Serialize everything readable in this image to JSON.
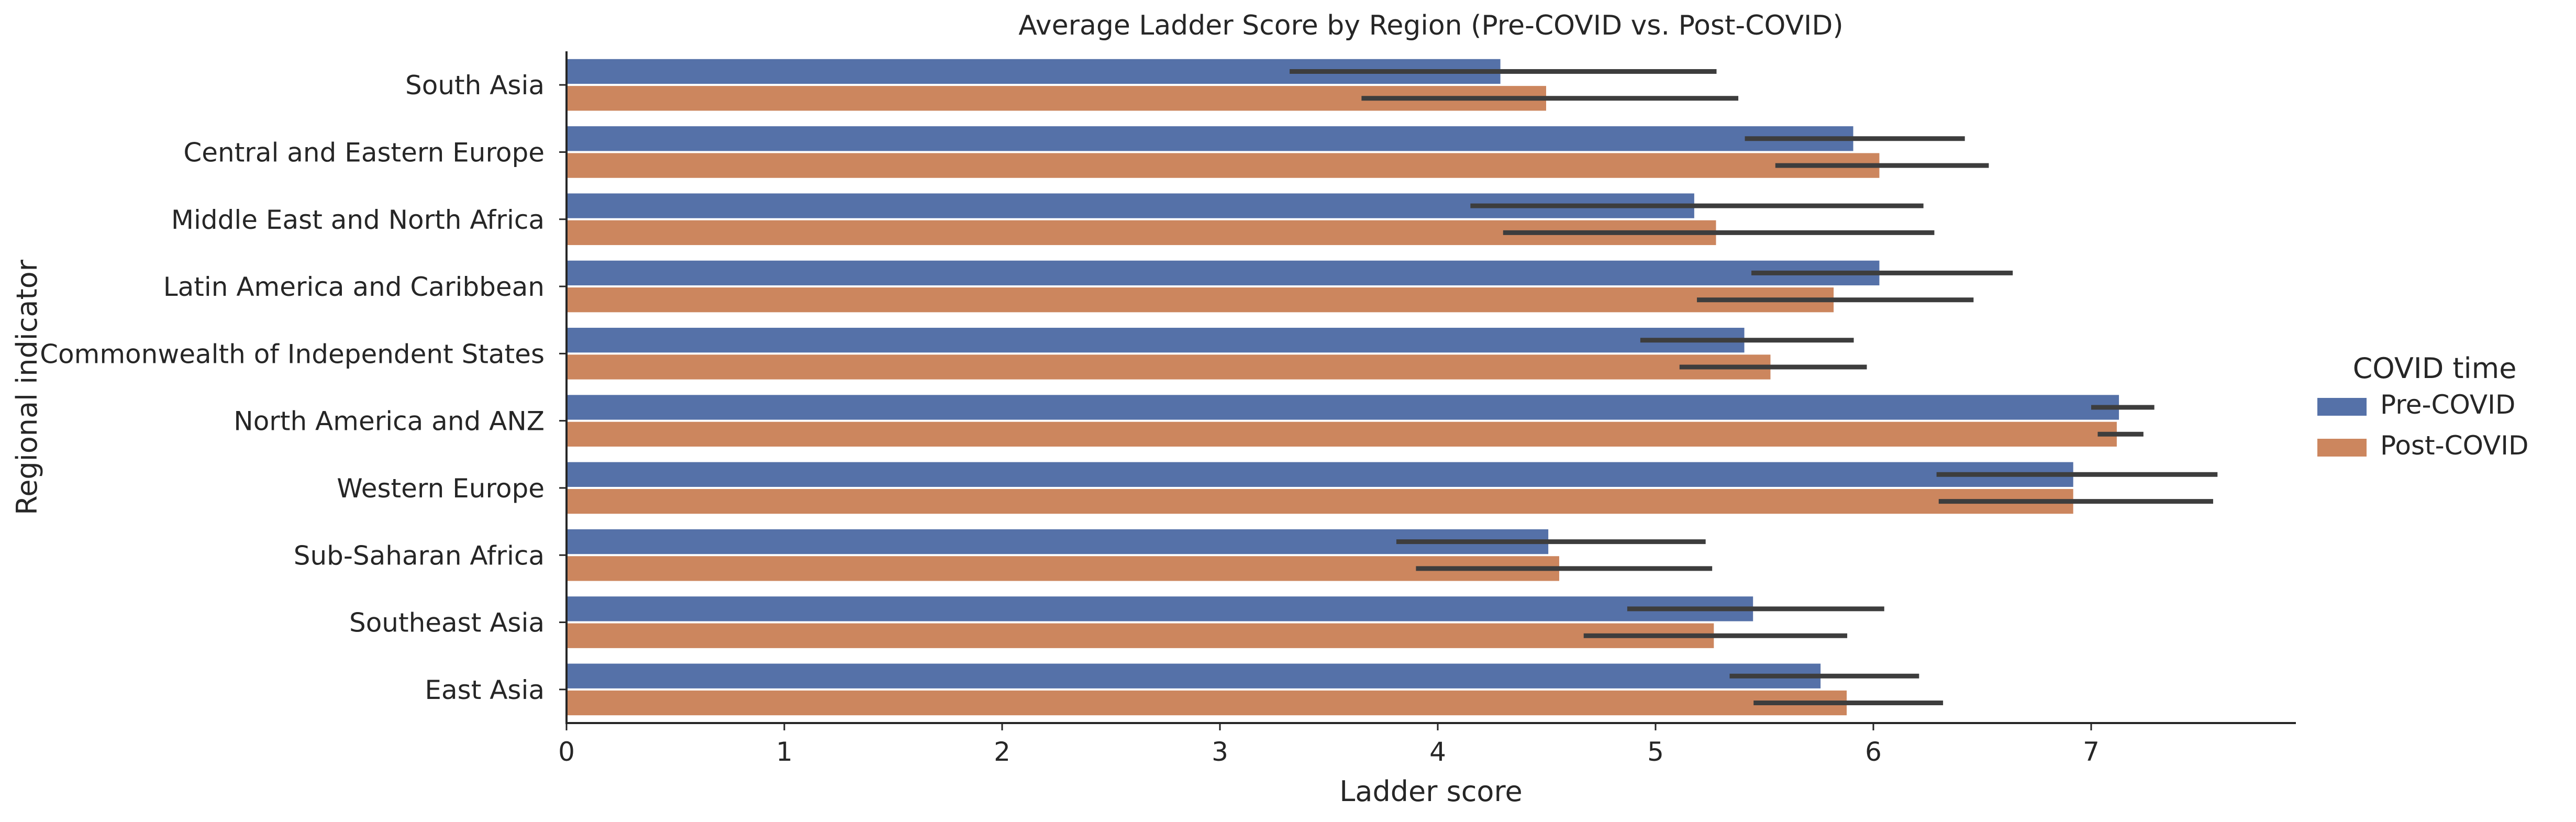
{
  "chart_data": {
    "type": "bar",
    "orientation": "horizontal",
    "title": "Average Ladder Score by Region (Pre-COVID vs. Post-COVID)",
    "xlabel": "Ladder score",
    "ylabel": "Regional indicator",
    "xlim": [
      0,
      7.95
    ],
    "xticks": [
      0,
      1,
      2,
      3,
      4,
      5,
      6,
      7
    ],
    "grid": false,
    "legend": {
      "title": "COVID time",
      "placement": "right"
    },
    "categories": [
      "South Asia",
      "Central and Eastern Europe",
      "Middle East and North Africa",
      "Latin America and Caribbean",
      "Commonwealth of Independent States",
      "North America and ANZ",
      "Western Europe",
      "Sub-Saharan Africa",
      "Southeast Asia",
      "East Asia"
    ],
    "series": [
      {
        "name": "Pre-COVID",
        "color": "#5571a8",
        "values": [
          4.29,
          5.91,
          5.18,
          6.03,
          5.41,
          7.13,
          6.92,
          4.51,
          5.45,
          5.76
        ],
        "ci_low": [
          3.32,
          5.41,
          4.15,
          5.44,
          4.93,
          7.0,
          6.29,
          3.81,
          4.87,
          5.34
        ],
        "ci_high": [
          5.28,
          6.42,
          6.23,
          6.64,
          5.91,
          7.29,
          7.58,
          5.23,
          6.05,
          6.21
        ]
      },
      {
        "name": "Post-COVID",
        "color": "#cc865e",
        "values": [
          4.5,
          6.03,
          5.28,
          5.82,
          5.53,
          7.12,
          6.92,
          4.56,
          5.27,
          5.88
        ],
        "ci_low": [
          3.65,
          5.55,
          4.3,
          5.19,
          5.11,
          7.03,
          6.3,
          3.9,
          4.67,
          5.45
        ],
        "ci_high": [
          5.38,
          6.53,
          6.28,
          6.46,
          5.97,
          7.24,
          7.56,
          5.26,
          5.88,
          6.32
        ]
      }
    ]
  }
}
